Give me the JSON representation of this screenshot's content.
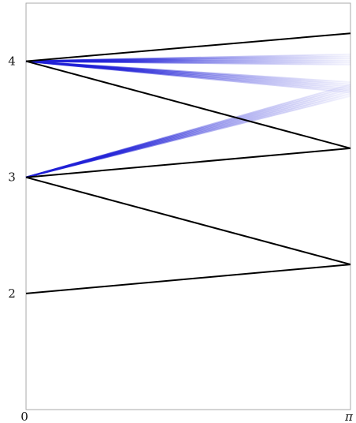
{
  "chart_data": {
    "type": "line",
    "xlim": [
      0,
      3.14159
    ],
    "ylim": [
      1,
      4.5
    ],
    "x_ticks": [
      {
        "value": 0,
        "label": "0"
      },
      {
        "value": 3.14159,
        "label": "π"
      }
    ],
    "y_ticks": [
      {
        "value": 2,
        "label": "2"
      },
      {
        "value": 3,
        "label": "3"
      },
      {
        "value": 4,
        "label": "4"
      }
    ],
    "grid": false,
    "colors": {
      "black_lines": "#000000",
      "blue_lines": "#1f1fd6",
      "frame": "#aaaaaa"
    },
    "black_lines": [
      {
        "x": [
          0,
          3.14159
        ],
        "y": [
          4,
          4.24
        ]
      },
      {
        "x": [
          0,
          3.14159
        ],
        "y": [
          4,
          3.25
        ]
      },
      {
        "x": [
          0,
          3.14159
        ],
        "y": [
          3,
          3.25
        ]
      },
      {
        "x": [
          0,
          3.14159
        ],
        "y": [
          3,
          2.25
        ]
      },
      {
        "x": [
          0,
          3.14159
        ],
        "y": [
          2,
          2.25
        ]
      }
    ],
    "blue_bands": [
      {
        "start": [
          0,
          4
        ],
        "end_x": 3.14159,
        "end_y_range": [
          3.97,
          4.06
        ]
      },
      {
        "start": [
          0,
          4
        ],
        "end_x": 3.14159,
        "end_y_range": [
          3.73,
          3.82
        ]
      },
      {
        "start": [
          0,
          3
        ],
        "end_x": 3.14159,
        "end_y_range": [
          3.7,
          3.8
        ]
      }
    ]
  }
}
